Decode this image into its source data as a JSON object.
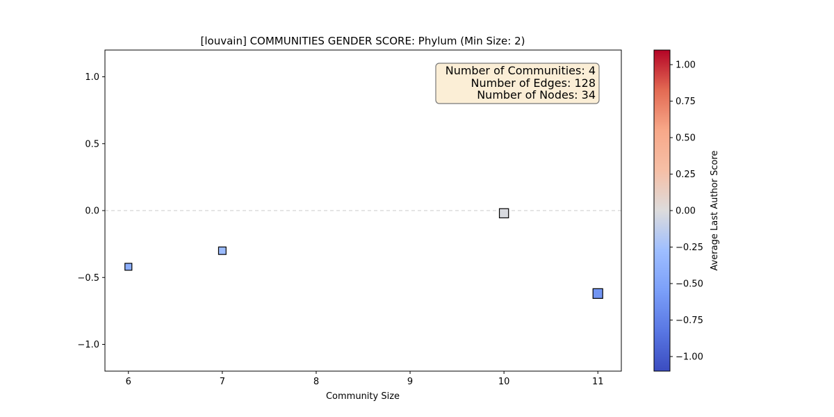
{
  "chart_data": {
    "type": "scatter",
    "title": "[louvain] COMMUNITIES GENDER SCORE: Phylum (Min Size: 2)",
    "xlabel": "Community Size",
    "ylabel": "",
    "xlim": [
      5.75,
      11.25
    ],
    "ylim": [
      -1.2,
      1.2
    ],
    "x_ticks": [
      "6",
      "7",
      "8",
      "9",
      "10",
      "11"
    ],
    "y_ticks": [
      "1.0",
      "0.5",
      "0.0",
      "−0.5",
      "−1.0"
    ],
    "reference_line_y": 0.0,
    "marker": "square",
    "colormap": "coolwarm",
    "points": [
      {
        "x": 6,
        "y": -0.42,
        "color_value": -0.42
      },
      {
        "x": 7,
        "y": -0.3,
        "color_value": -0.3
      },
      {
        "x": 10,
        "y": -0.02,
        "color_value": -0.02
      },
      {
        "x": 11,
        "y": -0.62,
        "color_value": -0.62
      }
    ],
    "colorbar": {
      "label": "Average Last Author Score",
      "range": [
        -1.1,
        1.1
      ],
      "ticks": [
        "1.00",
        "0.75",
        "0.50",
        "0.25",
        "0.00",
        "−0.25",
        "−0.50",
        "−0.75",
        "−1.00"
      ]
    },
    "info_box": {
      "lines": [
        "Number of Communities: 4",
        "Number of Edges: 128",
        "Number of Nodes: 34"
      ],
      "placement": "top-right"
    }
  }
}
